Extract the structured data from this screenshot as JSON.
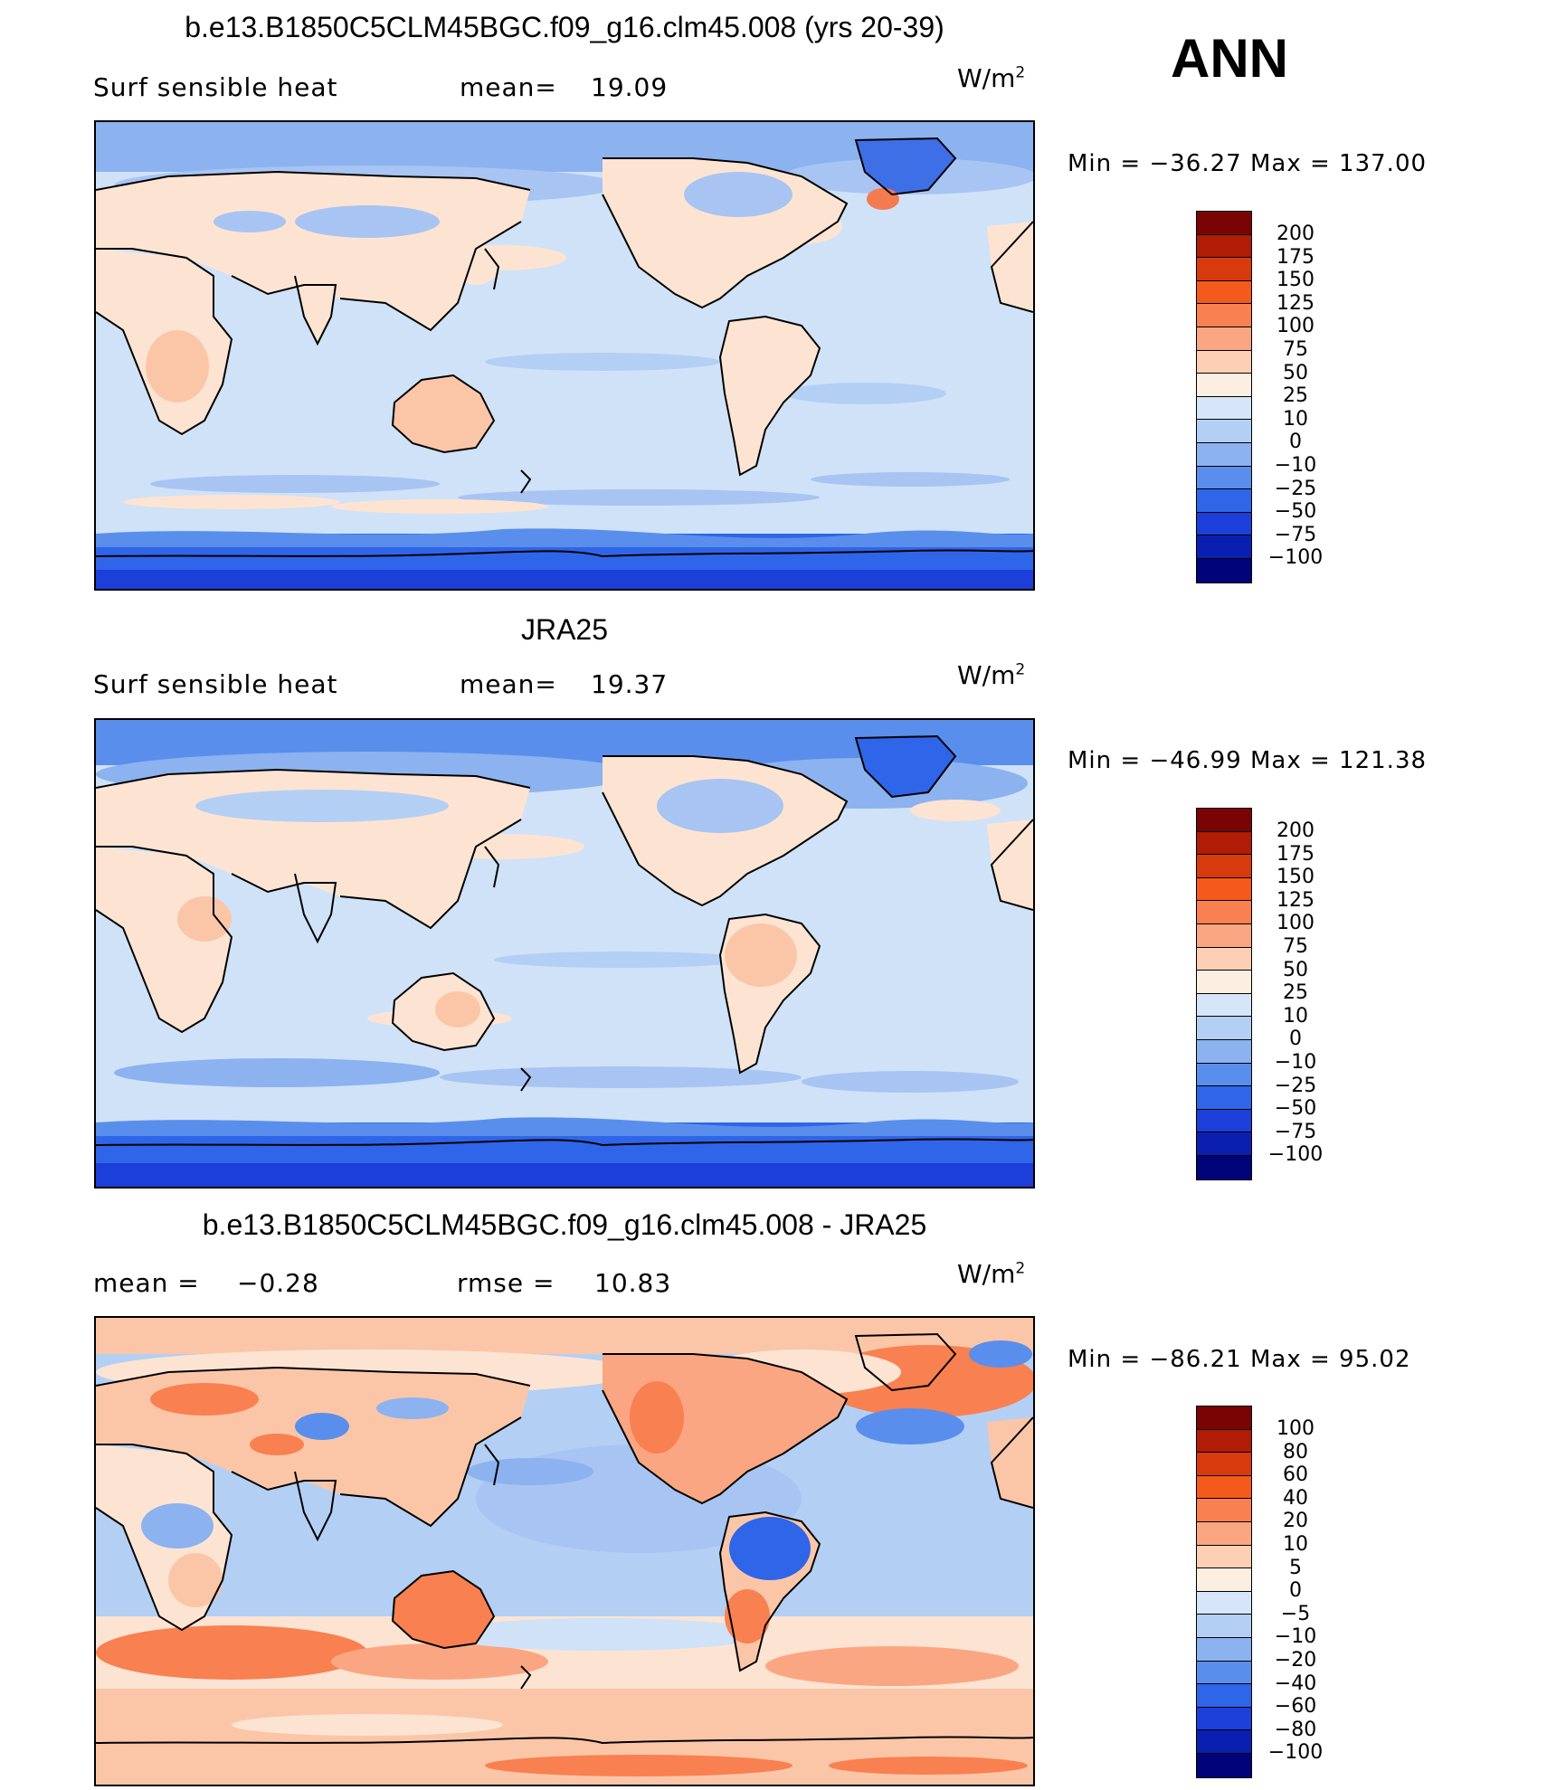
{
  "season": "ANN",
  "panels": [
    {
      "title": "b.e13.B1850C5CLM45BGC.f09_g16.clm45.008 (yrs 20-39)",
      "left_label": "Surf sensible heat",
      "mid_label": "mean=",
      "mid_value": "19.09",
      "units_base": "W/m",
      "units_exp": "2",
      "min_label": "Min",
      "min_value": "−36.27",
      "max_label": "Max",
      "max_value": "137.00",
      "colorbar_labels": [
        "200",
        "175",
        "150",
        "125",
        "100",
        "75",
        "50",
        "25",
        "10",
        "0",
        "−10",
        "−25",
        "−50",
        "−75",
        "−100"
      ]
    },
    {
      "title": "JRA25",
      "left_label": "Surf sensible heat",
      "mid_label": "mean=",
      "mid_value": "19.37",
      "units_base": "W/m",
      "units_exp": "2",
      "min_label": "Min",
      "min_value": "−46.99",
      "max_label": "Max",
      "max_value": "121.38",
      "colorbar_labels": [
        "200",
        "175",
        "150",
        "125",
        "100",
        "75",
        "50",
        "25",
        "10",
        "0",
        "−10",
        "−25",
        "−50",
        "−75",
        "−100"
      ]
    },
    {
      "title": "b.e13.B1850C5CLM45BGC.f09_g16.clm45.008 - JRA25",
      "left_label": "mean =",
      "left_value": "−0.28",
      "mid_label": "rmse =",
      "mid_value": "10.83",
      "units_base": "W/m",
      "units_exp": "2",
      "min_label": "Min",
      "min_value": "−86.21",
      "max_label": "Max",
      "max_value": "95.02",
      "colorbar_labels": [
        "100",
        "80",
        "60",
        "40",
        "20",
        "10",
        "5",
        "0",
        "−5",
        "−10",
        "−20",
        "−40",
        "−60",
        "−80",
        "−100"
      ]
    }
  ],
  "colorbar_colors": [
    "#7a0403",
    "#b01c05",
    "#d83a0d",
    "#f45a1c",
    "#f98050",
    "#fba682",
    "#fdcfb4",
    "#fdeee2",
    "#d6e6f8",
    "#b4cff4",
    "#8cb2ef",
    "#5a8eec",
    "#2f65e8",
    "#1b3fd8",
    "#0a1fb0",
    "#00037a"
  ],
  "colors": {
    "ocean_base": "#cfe2f8",
    "land_warm": "#fde4d2",
    "land_warmer": "#fbc6a8",
    "cold_light": "#a8c4f2",
    "cold_mid": "#6f9bee",
    "cold_deep": "#2a5ee0",
    "hot": "#f47a4f",
    "coast": "#000000"
  }
}
